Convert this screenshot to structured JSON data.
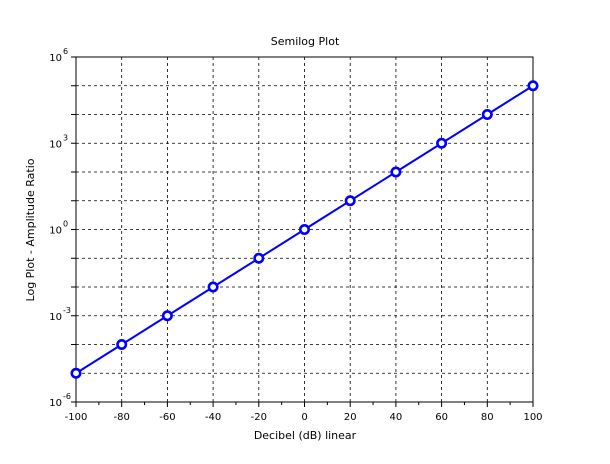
{
  "chart_data": {
    "type": "line",
    "title": "Semilog Plot",
    "xlabel": "Decibel (dB) linear",
    "ylabel": "Log Plot - Amplitude Ratio",
    "xlim": [
      -100,
      100
    ],
    "ylim": [
      1e-06,
      1000000
    ],
    "y_scale": "log",
    "grid": true,
    "legend": "none",
    "x_ticks": [
      -100,
      -80,
      -60,
      -40,
      -20,
      0,
      20,
      40,
      60,
      80,
      100
    ],
    "x_tick_labels": [
      "-100",
      "-80",
      "-60",
      "-40",
      "-20",
      "0",
      "20",
      "40",
      "60",
      "80",
      "100"
    ],
    "y_ticks": [
      {
        "base": "10",
        "exp": "-6",
        "value": 1e-06
      },
      {
        "base": "10",
        "exp": "-3",
        "value": 0.001
      },
      {
        "base": "10",
        "exp": "0",
        "value": 1
      },
      {
        "base": "10",
        "exp": "3",
        "value": 1000
      },
      {
        "base": "10",
        "exp": "6",
        "value": 1000000
      }
    ],
    "x": [
      -100,
      -80,
      -60,
      -40,
      -20,
      0,
      20,
      40,
      60,
      80,
      100
    ],
    "series": [
      {
        "values": [
          1e-05,
          0.0001,
          0.001,
          0.01,
          0.1,
          1,
          10,
          100,
          1000,
          10000,
          100000
        ],
        "color": "#0000ff",
        "marker": "circle"
      }
    ]
  }
}
